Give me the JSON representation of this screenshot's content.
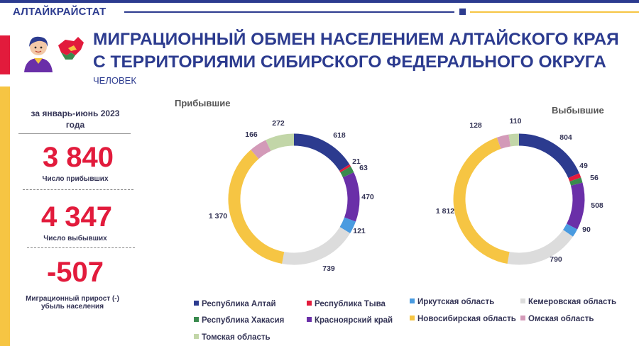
{
  "header": {
    "brand": "АЛТАЙКРАЙСТАТ",
    "title_line1": "МИГРАЦИОННЫЙ ОБМЕН НАСЕЛЕНИЕМ АЛТАЙСКОГО КРАЯ",
    "title_line2": "С ТЕРРИТОРИЯМИ СИБИРСКОГО ФЕДЕРАЛЬНОГО ОКРУГА",
    "unit": "ЧЕЛОВЕК"
  },
  "stats": {
    "period": "за январь-июнь 2023 года",
    "arrived_value": "3 840",
    "arrived_label": "Число прибывших",
    "departed_value": "4 347",
    "departed_label": "Число выбывших",
    "growth_value": "-507",
    "growth_label": "Миграционный прирост (-) убыль населения"
  },
  "colors": {
    "navy": "#2c3b8f",
    "red": "#e21b3c",
    "gold": "#f6c543"
  },
  "chart_data": [
    {
      "type": "pie",
      "title": "Прибывшие",
      "categories": [
        "Республика Алтай",
        "Республика Тыва",
        "Республика Хакасия",
        "Красноярский край",
        "Иркутская область",
        "Кемеровская область",
        "Новосибирская область",
        "Омская область",
        "Томская область"
      ],
      "values": [
        618,
        21,
        63,
        470,
        121,
        739,
        1370,
        166,
        272
      ],
      "value_labels": [
        "618",
        "21",
        "63",
        "470",
        "121",
        "739",
        "1 370",
        "166",
        "272"
      ],
      "colors": [
        "#2c3b8f",
        "#e21b3c",
        "#3a8a4e",
        "#6a2fa8",
        "#4a9be0",
        "#dcdcdc",
        "#f6c543",
        "#d39ab8",
        "#c2d6a8"
      ]
    },
    {
      "type": "pie",
      "title": "Выбывшие",
      "categories": [
        "Республика Алтай",
        "Республика Тыва",
        "Республика Хакасия",
        "Красноярский край",
        "Иркутская область",
        "Кемеровская область",
        "Новосибирская область",
        "Омская область",
        "Томская область"
      ],
      "values": [
        804,
        49,
        56,
        508,
        90,
        790,
        1812,
        128,
        110
      ],
      "value_labels": [
        "804",
        "49",
        "56",
        "508",
        "90",
        "790",
        "1 812",
        "128",
        "110"
      ],
      "colors": [
        "#2c3b8f",
        "#e21b3c",
        "#3a8a4e",
        "#6a2fa8",
        "#4a9be0",
        "#dcdcdc",
        "#f6c543",
        "#d39ab8",
        "#c2d6a8"
      ]
    }
  ],
  "legend": [
    {
      "label": "Республика Алтай",
      "color": "#2c3b8f"
    },
    {
      "label": "Республика Тыва",
      "color": "#e21b3c"
    },
    {
      "label": "Иркутская область",
      "color": "#4a9be0"
    },
    {
      "label": "Кемеровская область",
      "color": "#dcdcdc"
    },
    {
      "label": "Республика Хакасия",
      "color": "#3a8a4e"
    },
    {
      "label": "Красноярский край",
      "color": "#6a2fa8"
    },
    {
      "label": "Новосибирская область",
      "color": "#f6c543"
    },
    {
      "label": "Омская область",
      "color": "#d39ab8"
    },
    {
      "label": "Томская область",
      "color": "#c2d6a8"
    }
  ]
}
